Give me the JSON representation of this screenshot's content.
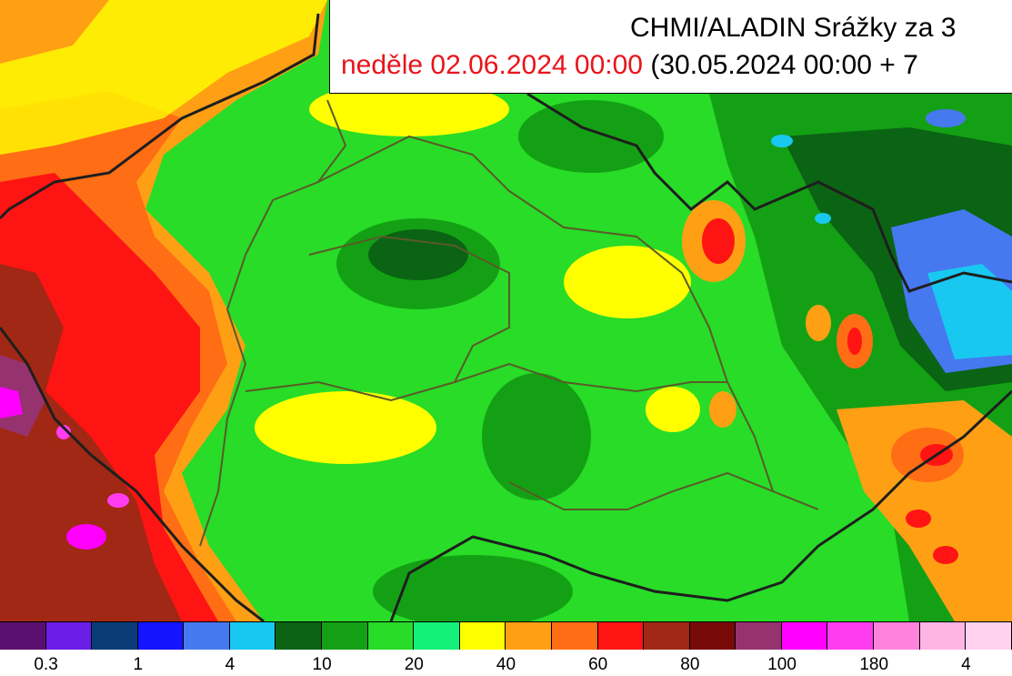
{
  "title": {
    "line1": "CHMI/ALADIN Srážky za 3",
    "date": "neděle 02.06.2024 00:00",
    "range": "(30.05.2024 00:00 + 7"
  },
  "legend": {
    "colors": [
      "#5a0f6e",
      "#6a1ee6",
      "#0a3c78",
      "#1414ff",
      "#4678f0",
      "#18c8f0",
      "#0a6414",
      "#14a014",
      "#28dc28",
      "#14f078",
      "#ffff00",
      "#ffa014",
      "#ff6e14",
      "#ff1414",
      "#a02814",
      "#780a0a",
      "#96326e",
      "#ff00ff",
      "#ff3cf0",
      "#ff82dc",
      "#ffb4e6",
      "#ffd2f0"
    ],
    "ticks": [
      "0.3",
      "1",
      "4",
      "10",
      "20",
      "40",
      "60",
      "80",
      "100",
      "180",
      "4"
    ]
  },
  "map": {
    "background_color": "#28dc28",
    "border_color": "#1e1e1e",
    "region_border_color": "#5a5a28"
  }
}
